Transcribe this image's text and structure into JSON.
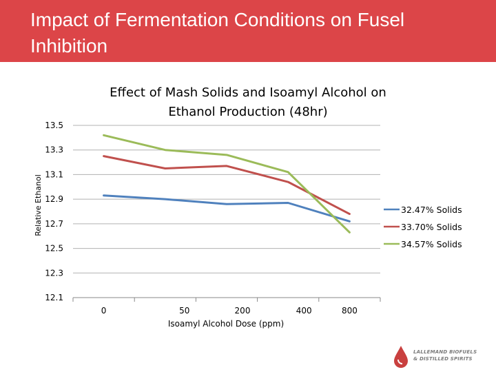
{
  "slide": {
    "title": "Impact of Fermentation Conditions on Fusel Inhibition"
  },
  "logo": {
    "line1": "LALLEMAND BIOFUELS",
    "line2": "& DISTILLED SPIRITS"
  },
  "colors": {
    "header": "#dc4548",
    "series": [
      "#4f81bd",
      "#c0504d",
      "#9bbb59"
    ],
    "grid": "#b0b0b0"
  },
  "chart_data": {
    "type": "line",
    "title": "Effect of Mash Solids and Isoamyl Alcohol on Ethanol Production (48hr)",
    "title_lines": [
      "Effect of Mash Solids and Isoamyl Alcohol on",
      "Ethanol Production (48hr)"
    ],
    "xlabel": "Isoamyl Alcohol Dose (ppm)",
    "ylabel": "Relative Ethanol",
    "categories": [
      "0",
      "50",
      "200",
      "400",
      "800"
    ],
    "ylim": [
      12.1,
      13.5
    ],
    "yticks": [
      "13.5",
      "13.3",
      "13.1",
      "12.9",
      "12.7",
      "12.5",
      "12.3",
      "12.1"
    ],
    "grid": "horizontal",
    "legend": "right",
    "series": [
      {
        "name": "32.47% Solids",
        "values": [
          12.93,
          12.9,
          12.86,
          12.87,
          12.72
        ]
      },
      {
        "name": "33.70% Solids",
        "values": [
          13.25,
          13.15,
          13.17,
          13.04,
          12.78
        ]
      },
      {
        "name": "34.57% Solids",
        "values": [
          13.42,
          13.3,
          13.26,
          13.12,
          12.63
        ]
      }
    ]
  }
}
